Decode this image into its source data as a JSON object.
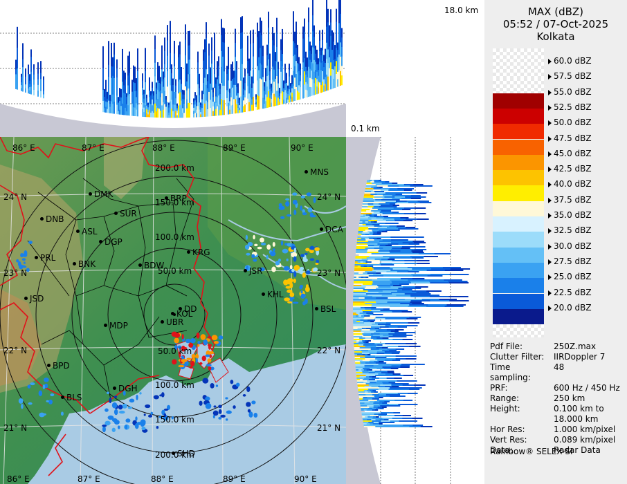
{
  "header": {
    "product": "MAX (dBZ)",
    "datetime": "05:52 / 07-Oct-2025",
    "station": "Kolkata"
  },
  "heights": {
    "top_label": "18.0 km",
    "bottom_label": "0.1 km"
  },
  "legend": [
    {
      "label": "60.0 dBZ",
      "color": "#ffffff"
    },
    {
      "label": "57.5 dBZ",
      "color": "#ffffff"
    },
    {
      "label": "55.0 dBZ",
      "color": "#a00000"
    },
    {
      "label": "52.5 dBZ",
      "color": "#cc0000"
    },
    {
      "label": "50.0 dBZ",
      "color": "#f02a00"
    },
    {
      "label": "47.5 dBZ",
      "color": "#f86200"
    },
    {
      "label": "45.0 dBZ",
      "color": "#fb9500"
    },
    {
      "label": "42.5 dBZ",
      "color": "#fdc300"
    },
    {
      "label": "40.0 dBZ",
      "color": "#ffee00"
    },
    {
      "label": "37.5 dBZ",
      "color": "#fff8d8"
    },
    {
      "label": "35.0 dBZ",
      "color": "#d8f2ff"
    },
    {
      "label": "32.5 dBZ",
      "color": "#9cdcfa"
    },
    {
      "label": "30.0 dBZ",
      "color": "#64c0f6"
    },
    {
      "label": "27.5 dBZ",
      "color": "#3aa2f2"
    },
    {
      "label": "25.0 dBZ",
      "color": "#1a80ea"
    },
    {
      "label": "22.5 dBZ",
      "color": "#0a5ad8"
    },
    {
      "label": "20.0 dBZ",
      "color": "#0434b8"
    }
  ],
  "legend_bottom": "#0a1a8c",
  "meta": [
    {
      "key": "Pdf File:",
      "value": "250Z.max"
    },
    {
      "key": "Clutter Filter:",
      "value": "IIRDoppler 7"
    },
    {
      "key": "Time sampling:",
      "value": "48"
    },
    {
      "key": "PRF:",
      "value": "600 Hz / 450 Hz"
    },
    {
      "key": "Range:",
      "value": "250 km"
    },
    {
      "key": "Height:",
      "value": "0.100 km to 18.000 km"
    },
    {
      "key": "Hor Res:",
      "value": "1.000 km/pixel"
    },
    {
      "key": "Vert Res:",
      "value": "0.089 km/pixel"
    },
    {
      "key": "Data:",
      "value": "Radar Data"
    }
  ],
  "footer": "Rainbow® SELEX-SI",
  "map": {
    "lon_labels": [
      "86° E",
      "87° E",
      "88° E",
      "89° E",
      "90° E"
    ],
    "lat_labels": [
      "24° N",
      "23° N",
      "22° N",
      "21° N"
    ],
    "range_labels": [
      "200.0 km",
      "150.0 km",
      "100.0 km",
      "50.0 km",
      "50.0 km",
      "100.0 km",
      "150.0 km",
      "200.0 km"
    ],
    "stations": [
      {
        "code": "MNS"
      },
      {
        "code": "DMK"
      },
      {
        "code": "BRP"
      },
      {
        "code": "SUR"
      },
      {
        "code": "DNB"
      },
      {
        "code": "ASL"
      },
      {
        "code": "DGP"
      },
      {
        "code": "DCA"
      },
      {
        "code": "KRG"
      },
      {
        "code": "PRL"
      },
      {
        "code": "BNK"
      },
      {
        "code": "BDW"
      },
      {
        "code": "JSR"
      },
      {
        "code": "KHL"
      },
      {
        "code": "JSD"
      },
      {
        "code": "BSL"
      },
      {
        "code": "DD"
      },
      {
        "code": "KOL"
      },
      {
        "code": "MDP"
      },
      {
        "code": "UBR"
      },
      {
        "code": "BPD"
      },
      {
        "code": "DGH"
      },
      {
        "code": "BLS"
      },
      {
        "code": "SHD"
      }
    ]
  }
}
